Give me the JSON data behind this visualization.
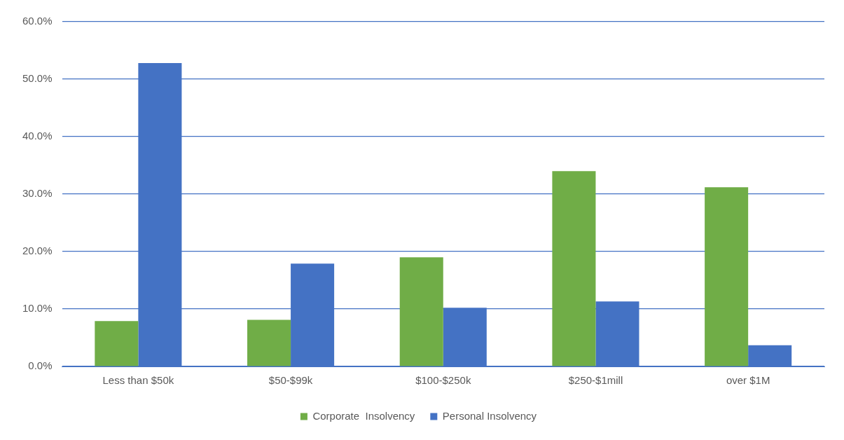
{
  "chart_data": {
    "type": "bar",
    "categories": [
      "Less than $50k",
      "$50-$99k",
      "$100-$250k",
      "$250-$1mill",
      "over $1M"
    ],
    "series": [
      {
        "name": "Corporate  Insolvency",
        "color": "#70ad47",
        "values": [
          7.9,
          8.1,
          19.0,
          34.0,
          31.2
        ]
      },
      {
        "name": "Personal Insolvency",
        "color": "#4472c4",
        "values": [
          52.8,
          17.9,
          10.2,
          11.3,
          3.7
        ]
      }
    ],
    "ylim": [
      0,
      60
    ],
    "yticks": [
      {
        "value": 0,
        "label": "0.0%"
      },
      {
        "value": 10,
        "label": "10.0%"
      },
      {
        "value": 20,
        "label": "20.0%"
      },
      {
        "value": 30,
        "label": "30.0%"
      },
      {
        "value": 40,
        "label": "40.0%"
      },
      {
        "value": 50,
        "label": "50.0%"
      },
      {
        "value": 60,
        "label": "60.0%"
      }
    ],
    "grid": "y",
    "legend": "bottom"
  }
}
